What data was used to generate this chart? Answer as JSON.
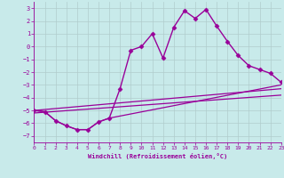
{
  "xlabel": "Windchill (Refroidissement éolien,°C)",
  "background_color": "#c8eaea",
  "grid_color": "#b0cccc",
  "line_color": "#990099",
  "xlim": [
    0,
    23
  ],
  "ylim": [
    -7.5,
    3.5
  ],
  "yticks": [
    -7,
    -6,
    -5,
    -4,
    -3,
    -2,
    -1,
    0,
    1,
    2,
    3
  ],
  "xticks": [
    0,
    1,
    2,
    3,
    4,
    5,
    6,
    7,
    8,
    9,
    10,
    11,
    12,
    13,
    14,
    15,
    16,
    17,
    18,
    19,
    20,
    21,
    22,
    23
  ],
  "series": [
    {
      "x": [
        0,
        1,
        2,
        3,
        4,
        5,
        6,
        7,
        8,
        9,
        10,
        11,
        12,
        13,
        14,
        15,
        16,
        17,
        18,
        19,
        20,
        21,
        22,
        23
      ],
      "y": [
        -5.0,
        -5.1,
        -5.8,
        -6.2,
        -6.5,
        -6.5,
        -5.9,
        -5.6,
        -3.3,
        -0.3,
        0.0,
        1.0,
        -0.9,
        1.5,
        2.8,
        2.2,
        2.9,
        1.6,
        0.4,
        -0.7,
        -1.5,
        -1.8,
        -2.1,
        -2.8
      ],
      "marker": "D",
      "markersize": 2.5,
      "linewidth": 1.0,
      "line": true
    },
    {
      "x": [
        0,
        1,
        2,
        3,
        4,
        5,
        6,
        7,
        23
      ],
      "y": [
        -5.0,
        -5.1,
        -5.8,
        -6.2,
        -6.5,
        -6.5,
        -5.9,
        -5.6,
        -3.0
      ],
      "marker": null,
      "markersize": 0,
      "linewidth": 0.9,
      "line": true
    },
    {
      "x": [
        0,
        23
      ],
      "y": [
        -5.0,
        -3.3
      ],
      "marker": null,
      "markersize": 0,
      "linewidth": 0.9,
      "line": true
    },
    {
      "x": [
        0,
        23
      ],
      "y": [
        -5.2,
        -3.8
      ],
      "marker": null,
      "markersize": 0,
      "linewidth": 0.9,
      "line": true
    }
  ]
}
